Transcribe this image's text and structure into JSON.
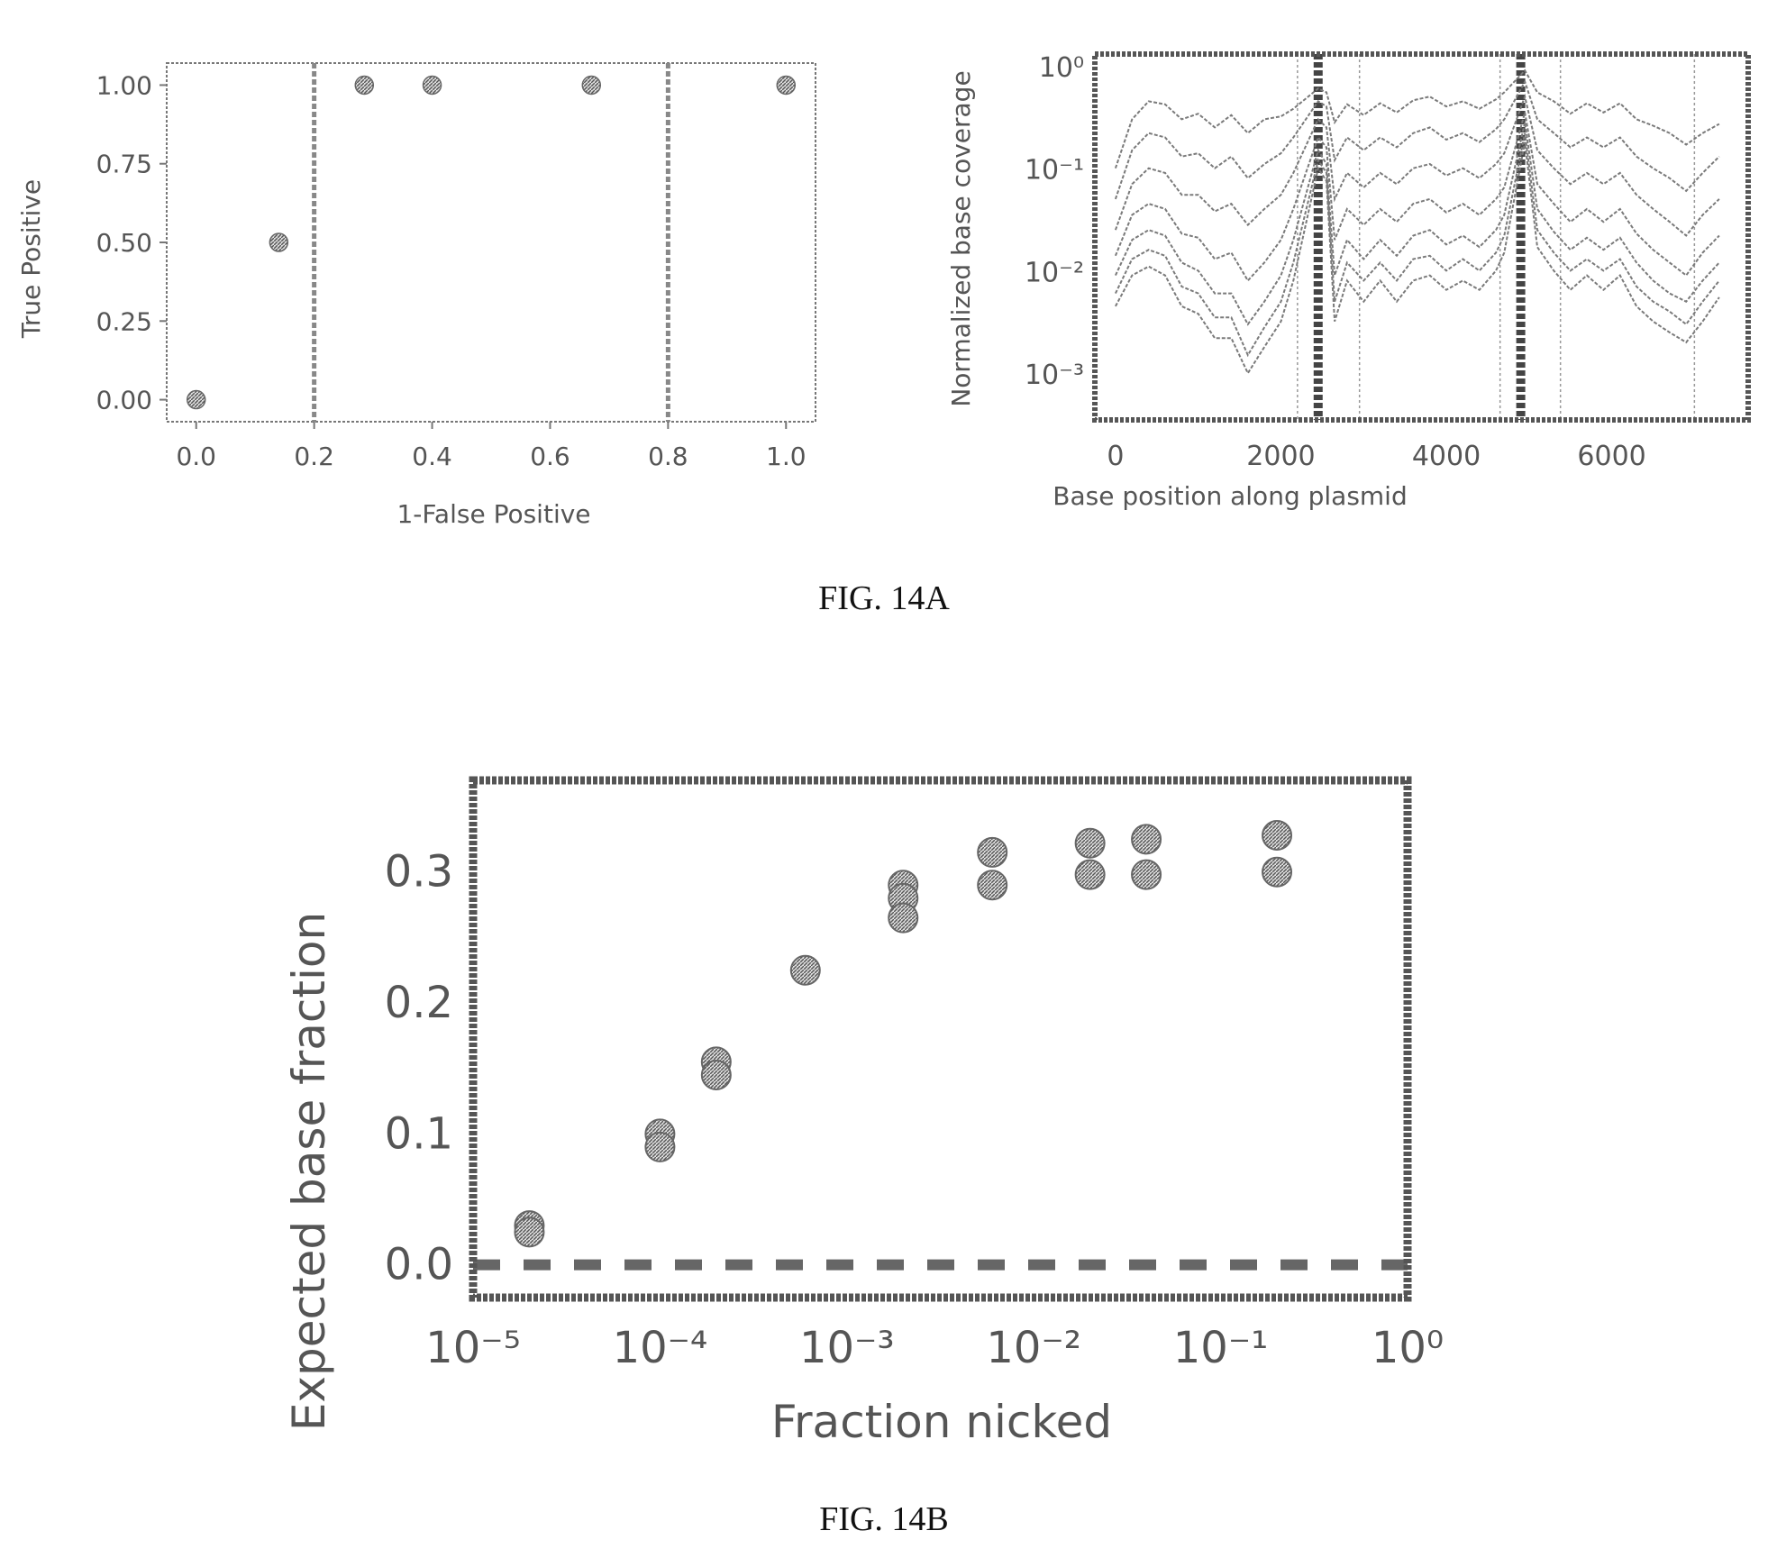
{
  "figures": [
    {
      "caption": "FIG. 14A"
    },
    {
      "caption": "FIG. 14B"
    }
  ],
  "colors": {
    "ink": "#555555",
    "marker": "#666666",
    "line": "#888888",
    "frame": "#777777"
  },
  "chart_data": [
    {
      "id": "roc",
      "type": "scatter",
      "title": "",
      "xlabel": "1-False Positive",
      "ylabel": "True Positive",
      "xlim": [
        -0.05,
        1.05
      ],
      "ylim": [
        -0.07,
        1.07
      ],
      "xticks": [
        0.0,
        0.2,
        0.4,
        0.6,
        0.8,
        1.0
      ],
      "xtick_labels": [
        "0.0",
        "0.2",
        "0.4",
        "0.6",
        "0.8",
        "1.0"
      ],
      "yticks": [
        0.0,
        0.25,
        0.5,
        0.75,
        1.0
      ],
      "ytick_labels": [
        "0.00",
        "0.25",
        "0.50",
        "0.75",
        "1.00"
      ],
      "grid": false,
      "points": [
        {
          "x": 0.0,
          "y": 0.0
        },
        {
          "x": 0.14,
          "y": 0.5
        },
        {
          "x": 0.285,
          "y": 1.0
        },
        {
          "x": 0.4,
          "y": 1.0
        },
        {
          "x": 0.67,
          "y": 1.0
        },
        {
          "x": 1.0,
          "y": 1.0
        }
      ],
      "vlines": [
        0.2,
        0.8
      ]
    },
    {
      "id": "coverage",
      "type": "line",
      "title": "",
      "xlabel": "Base position along plasmid",
      "ylabel": "Normalized base coverage",
      "yscale": "log",
      "xlim": [
        -250,
        7650
      ],
      "ylim": [
        0.00035,
        1.3
      ],
      "xticks": [
        0,
        2000,
        4000,
        6000
      ],
      "xtick_labels": [
        "0",
        "2000",
        "4000",
        "6000"
      ],
      "yticks": [
        1,
        0.1,
        0.01,
        0.001
      ],
      "ytick_labels": [
        "10⁰",
        "10⁻¹",
        "10⁻²",
        "10⁻³"
      ],
      "grid": false,
      "thin_vlines": [
        2200,
        2950,
        4650,
        5380,
        7000
      ],
      "thick_vlines": [
        2450,
        4900
      ],
      "series": [
        {
          "x": [
            0,
            200,
            400,
            600,
            800,
            1000,
            1200,
            1400,
            1600,
            1800,
            2000,
            2150,
            2450,
            2550,
            2650,
            2800,
            3000,
            3200,
            3400,
            3600,
            3800,
            4000,
            4200,
            4400,
            4600,
            4700,
            4950,
            5100,
            5300,
            5500,
            5700,
            5900,
            6100,
            6300,
            6500,
            6700,
            6900,
            7100,
            7300
          ],
          "y": [
            0.1,
            0.3,
            0.45,
            0.42,
            0.3,
            0.34,
            0.25,
            0.33,
            0.22,
            0.3,
            0.32,
            0.38,
            0.6,
            0.55,
            0.28,
            0.42,
            0.33,
            0.43,
            0.35,
            0.46,
            0.5,
            0.4,
            0.45,
            0.38,
            0.47,
            0.55,
            0.9,
            0.55,
            0.45,
            0.34,
            0.43,
            0.35,
            0.43,
            0.3,
            0.26,
            0.22,
            0.17,
            0.22,
            0.27
          ]
        },
        {
          "x": [
            0,
            200,
            400,
            600,
            800,
            1000,
            1200,
            1400,
            1600,
            1800,
            2000,
            2150,
            2450,
            2550,
            2650,
            2800,
            3000,
            3200,
            3400,
            3600,
            3800,
            4000,
            4200,
            4400,
            4600,
            4700,
            4950,
            5100,
            5300,
            5500,
            5700,
            5900,
            6100,
            6300,
            6500,
            6700,
            6900,
            7100,
            7300
          ],
          "y": [
            0.05,
            0.15,
            0.22,
            0.2,
            0.13,
            0.14,
            0.1,
            0.13,
            0.08,
            0.11,
            0.14,
            0.2,
            0.45,
            0.4,
            0.12,
            0.2,
            0.15,
            0.2,
            0.16,
            0.22,
            0.25,
            0.19,
            0.22,
            0.18,
            0.24,
            0.3,
            0.7,
            0.3,
            0.22,
            0.16,
            0.2,
            0.16,
            0.2,
            0.13,
            0.1,
            0.08,
            0.06,
            0.09,
            0.13
          ]
        },
        {
          "x": [
            0,
            200,
            400,
            600,
            800,
            1000,
            1200,
            1400,
            1600,
            1800,
            2000,
            2150,
            2450,
            2550,
            2650,
            2800,
            3000,
            3200,
            3400,
            3600,
            3800,
            4000,
            4200,
            4400,
            4600,
            4700,
            4950,
            5100,
            5300,
            5500,
            5700,
            5900,
            6100,
            6300,
            6500,
            6700,
            6900,
            7100,
            7300
          ],
          "y": [
            0.025,
            0.07,
            0.1,
            0.09,
            0.055,
            0.055,
            0.038,
            0.045,
            0.028,
            0.04,
            0.055,
            0.09,
            0.3,
            0.25,
            0.05,
            0.09,
            0.065,
            0.09,
            0.07,
            0.1,
            0.11,
            0.085,
            0.1,
            0.08,
            0.11,
            0.14,
            0.5,
            0.15,
            0.1,
            0.07,
            0.09,
            0.07,
            0.09,
            0.055,
            0.04,
            0.03,
            0.022,
            0.035,
            0.05
          ]
        },
        {
          "x": [
            0,
            200,
            400,
            600,
            800,
            1000,
            1200,
            1400,
            1600,
            1800,
            2000,
            2150,
            2450,
            2550,
            2650,
            2800,
            3000,
            3200,
            3400,
            3600,
            3800,
            4000,
            4200,
            4400,
            4600,
            4700,
            4950,
            5100,
            5300,
            5500,
            5700,
            5900,
            6100,
            6300,
            6500,
            6700,
            6900,
            7100,
            7300
          ],
          "y": [
            0.014,
            0.035,
            0.045,
            0.04,
            0.023,
            0.021,
            0.013,
            0.015,
            0.008,
            0.012,
            0.02,
            0.04,
            0.2,
            0.16,
            0.02,
            0.04,
            0.028,
            0.04,
            0.03,
            0.045,
            0.05,
            0.037,
            0.045,
            0.035,
            0.05,
            0.065,
            0.35,
            0.07,
            0.045,
            0.03,
            0.04,
            0.03,
            0.04,
            0.023,
            0.016,
            0.012,
            0.009,
            0.015,
            0.022
          ]
        },
        {
          "x": [
            0,
            200,
            400,
            600,
            800,
            1000,
            1200,
            1400,
            1600,
            1800,
            2000,
            2150,
            2450,
            2550,
            2650,
            2800,
            3000,
            3200,
            3400,
            3600,
            3800,
            4000,
            4200,
            4400,
            4600,
            4700,
            4950,
            5100,
            5300,
            5500,
            5700,
            5900,
            6100,
            6300,
            6500,
            6700,
            6900,
            7100,
            7300
          ],
          "y": [
            0.009,
            0.02,
            0.025,
            0.022,
            0.012,
            0.01,
            0.006,
            0.006,
            0.003,
            0.005,
            0.009,
            0.02,
            0.15,
            0.11,
            0.009,
            0.02,
            0.013,
            0.02,
            0.014,
            0.022,
            0.025,
            0.018,
            0.022,
            0.017,
            0.025,
            0.035,
            0.28,
            0.04,
            0.024,
            0.016,
            0.021,
            0.016,
            0.021,
            0.012,
            0.008,
            0.006,
            0.005,
            0.008,
            0.012
          ]
        },
        {
          "x": [
            0,
            200,
            400,
            600,
            800,
            1000,
            1200,
            1400,
            1600,
            1800,
            2000,
            2150,
            2450,
            2550,
            2650,
            2800,
            3000,
            3200,
            3400,
            3600,
            3800,
            4000,
            4200,
            4400,
            4600,
            4700,
            4950,
            5100,
            5300,
            5500,
            5700,
            5900,
            6100,
            6300,
            6500,
            6700,
            6900,
            7100,
            7300
          ],
          "y": [
            0.006,
            0.013,
            0.016,
            0.014,
            0.007,
            0.006,
            0.0035,
            0.0035,
            0.0015,
            0.0028,
            0.005,
            0.012,
            0.12,
            0.09,
            0.005,
            0.012,
            0.008,
            0.012,
            0.008,
            0.013,
            0.014,
            0.01,
            0.013,
            0.01,
            0.015,
            0.022,
            0.22,
            0.025,
            0.015,
            0.01,
            0.013,
            0.01,
            0.013,
            0.007,
            0.005,
            0.004,
            0.003,
            0.005,
            0.008
          ]
        },
        {
          "x": [
            0,
            200,
            400,
            600,
            800,
            1000,
            1200,
            1400,
            1600,
            1800,
            2000,
            2150,
            2450,
            2550,
            2650,
            2800,
            3000,
            3200,
            3400,
            3600,
            3800,
            4000,
            4200,
            4400,
            4600,
            4700,
            4950,
            5100,
            5300,
            5500,
            5700,
            5900,
            6100,
            6300,
            6500,
            6700,
            6900,
            7100,
            7300
          ],
          "y": [
            0.0045,
            0.009,
            0.011,
            0.009,
            0.0045,
            0.0038,
            0.0022,
            0.0022,
            0.001,
            0.0018,
            0.0032,
            0.008,
            0.1,
            0.075,
            0.0032,
            0.008,
            0.005,
            0.008,
            0.005,
            0.008,
            0.009,
            0.0065,
            0.008,
            0.0065,
            0.01,
            0.015,
            0.18,
            0.017,
            0.01,
            0.0065,
            0.009,
            0.0065,
            0.009,
            0.0045,
            0.0032,
            0.0025,
            0.002,
            0.0032,
            0.0055
          ]
        }
      ]
    },
    {
      "id": "nicked",
      "type": "scatter",
      "title": "",
      "xlabel": "Fraction nicked",
      "ylabel": "Expected base fraction",
      "xscale": "log",
      "xlim": [
        1e-05,
        1
      ],
      "ylim": [
        -0.025,
        0.37
      ],
      "xticks": [
        1e-05,
        0.0001,
        0.001,
        0.01,
        0.1,
        1
      ],
      "xtick_labels": [
        "10⁻⁵",
        "10⁻⁴",
        "10⁻³",
        "10⁻²",
        "10⁻¹",
        "10⁰"
      ],
      "yticks": [
        0.0,
        0.1,
        0.2,
        0.3
      ],
      "ytick_labels": [
        "0.0",
        "0.1",
        "0.2",
        "0.3"
      ],
      "grid": false,
      "points": [
        {
          "x": 2e-05,
          "y": 0.03
        },
        {
          "x": 2e-05,
          "y": 0.025
        },
        {
          "x": 0.0001,
          "y": 0.1
        },
        {
          "x": 0.0001,
          "y": 0.09
        },
        {
          "x": 0.0002,
          "y": 0.155
        },
        {
          "x": 0.0002,
          "y": 0.145
        },
        {
          "x": 0.0006,
          "y": 0.225
        },
        {
          "x": 0.002,
          "y": 0.29
        },
        {
          "x": 0.002,
          "y": 0.28
        },
        {
          "x": 0.002,
          "y": 0.265
        },
        {
          "x": 0.006,
          "y": 0.315
        },
        {
          "x": 0.006,
          "y": 0.29
        },
        {
          "x": 0.02,
          "y": 0.322
        },
        {
          "x": 0.02,
          "y": 0.298
        },
        {
          "x": 0.04,
          "y": 0.325
        },
        {
          "x": 0.04,
          "y": 0.298
        },
        {
          "x": 0.2,
          "y": 0.328
        },
        {
          "x": 0.2,
          "y": 0.3
        }
      ],
      "hline": 0.0
    }
  ]
}
